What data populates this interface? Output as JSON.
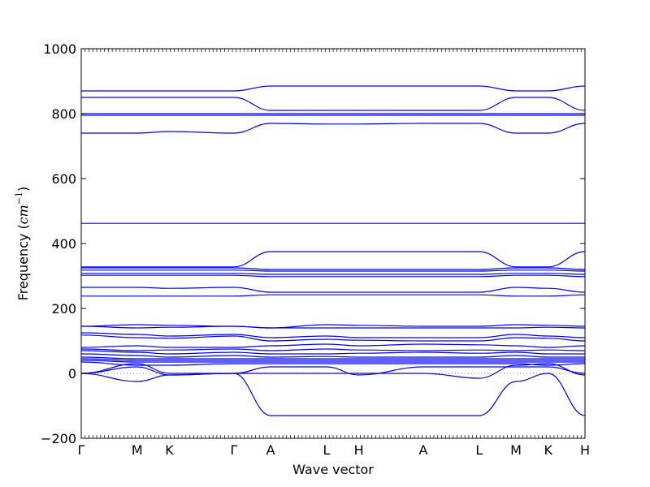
{
  "chart_data": {
    "type": "line",
    "title": "",
    "xlabel": "Wave vector",
    "ylabel": "Frequency ($cm^{-1}$)",
    "ylabel_parts": {
      "text": "Frequency (",
      "math": "cm",
      "sup": "−1",
      "close": ")"
    },
    "ylim": [
      -200,
      1000
    ],
    "yticks": [
      -200,
      0,
      200,
      400,
      600,
      800,
      1000
    ],
    "grid": false,
    "zero_line": true,
    "series_color": "#0000ff",
    "high_symmetry_points": [
      {
        "label": "Γ",
        "x": 0.0
      },
      {
        "label": "M",
        "x": 1.0
      },
      {
        "label": "K",
        "x": 1.577
      },
      {
        "label": "Γ",
        "x": 2.732
      },
      {
        "label": "A",
        "x": 3.39
      },
      {
        "label": "L",
        "x": 4.39
      },
      {
        "label": "H",
        "x": 4.967
      },
      {
        "label": "A",
        "x": 6.122
      },
      {
        "label": "L",
        "x": 7.122
      },
      {
        "label": "M",
        "x": 7.78
      },
      {
        "label": "K",
        "x": 8.357
      },
      {
        "label": "H",
        "x": 9.015
      }
    ],
    "series": [
      {
        "values": [
          870,
          870,
          870,
          870,
          885,
          885,
          885,
          885,
          885,
          870,
          870,
          885
        ]
      },
      {
        "values": [
          850,
          850,
          850,
          850,
          810,
          810,
          810,
          810,
          810,
          850,
          850,
          810
        ]
      },
      {
        "values": [
          800,
          800,
          800,
          800,
          800,
          800,
          800,
          800,
          800,
          800,
          800,
          800
        ]
      },
      {
        "values": [
          795,
          795,
          795,
          795,
          795,
          795,
          795,
          795,
          795,
          795,
          795,
          795
        ]
      },
      {
        "values": [
          740,
          740,
          745,
          740,
          770,
          768,
          768,
          770,
          770,
          740,
          740,
          770
        ]
      },
      {
        "values": [
          462,
          462,
          462,
          462,
          462,
          462,
          462,
          462,
          462,
          462,
          462,
          462
        ]
      },
      {
        "values": [
          328,
          328,
          328,
          328,
          375,
          375,
          375,
          375,
          375,
          328,
          328,
          375
        ]
      },
      {
        "values": [
          325,
          325,
          325,
          325,
          320,
          320,
          320,
          320,
          320,
          325,
          325,
          320
        ]
      },
      {
        "values": [
          318,
          318,
          318,
          318,
          315,
          315,
          315,
          315,
          315,
          318,
          318,
          315
        ]
      },
      {
        "values": [
          308,
          308,
          308,
          308,
          305,
          305,
          305,
          305,
          305,
          308,
          308,
          305
        ]
      },
      {
        "values": [
          302,
          302,
          302,
          302,
          298,
          298,
          298,
          298,
          298,
          302,
          302,
          298
        ]
      },
      {
        "values": [
          265,
          265,
          262,
          265,
          250,
          250,
          250,
          250,
          250,
          265,
          262,
          250
        ]
      },
      {
        "values": [
          238,
          238,
          238,
          238,
          242,
          242,
          242,
          242,
          242,
          238,
          238,
          242
        ]
      },
      {
        "values": [
          145,
          150,
          148,
          145,
          140,
          150,
          148,
          145,
          145,
          150,
          148,
          145
        ]
      },
      {
        "values": [
          145,
          140,
          142,
          145,
          140,
          140,
          140,
          140,
          140,
          140,
          142,
          140
        ]
      },
      {
        "values": [
          125,
          120,
          115,
          120,
          110,
          115,
          110,
          110,
          110,
          120,
          115,
          110
        ]
      },
      {
        "values": [
          118,
          110,
          108,
          115,
          100,
          105,
          102,
          100,
          100,
          110,
          108,
          100
        ]
      },
      {
        "values": [
          80,
          85,
          80,
          80,
          85,
          90,
          85,
          90,
          88,
          85,
          80,
          85
        ]
      },
      {
        "values": [
          75,
          70,
          72,
          75,
          70,
          75,
          72,
          70,
          72,
          70,
          72,
          70
        ]
      },
      {
        "values": [
          70,
          65,
          60,
          65,
          60,
          60,
          62,
          65,
          62,
          65,
          60,
          60
        ]
      },
      {
        "values": [
          60,
          55,
          50,
          55,
          50,
          52,
          50,
          50,
          50,
          55,
          50,
          50
        ]
      },
      {
        "values": [
          50,
          45,
          45,
          45,
          45,
          45,
          45,
          45,
          45,
          45,
          45,
          45
        ]
      },
      {
        "values": [
          45,
          40,
          40,
          40,
          40,
          40,
          40,
          40,
          40,
          40,
          40,
          40
        ]
      },
      {
        "values": [
          40,
          35,
          35,
          35,
          35,
          35,
          35,
          35,
          35,
          35,
          35,
          35
        ]
      },
      {
        "values": [
          35,
          25,
          25,
          30,
          30,
          30,
          30,
          30,
          30,
          30,
          25,
          30
        ]
      },
      {
        "values": [
          0,
          20,
          -5,
          0,
          20,
          20,
          -5,
          20,
          20,
          20,
          20,
          0
        ]
      },
      {
        "values": [
          0,
          -25,
          -5,
          0,
          -130,
          -130,
          -130,
          -130,
          -130,
          -25,
          0,
          -130
        ]
      },
      {
        "values": [
          0,
          30,
          0,
          0,
          0,
          0,
          0,
          0,
          -15,
          25,
          30,
          -5
        ]
      }
    ]
  }
}
